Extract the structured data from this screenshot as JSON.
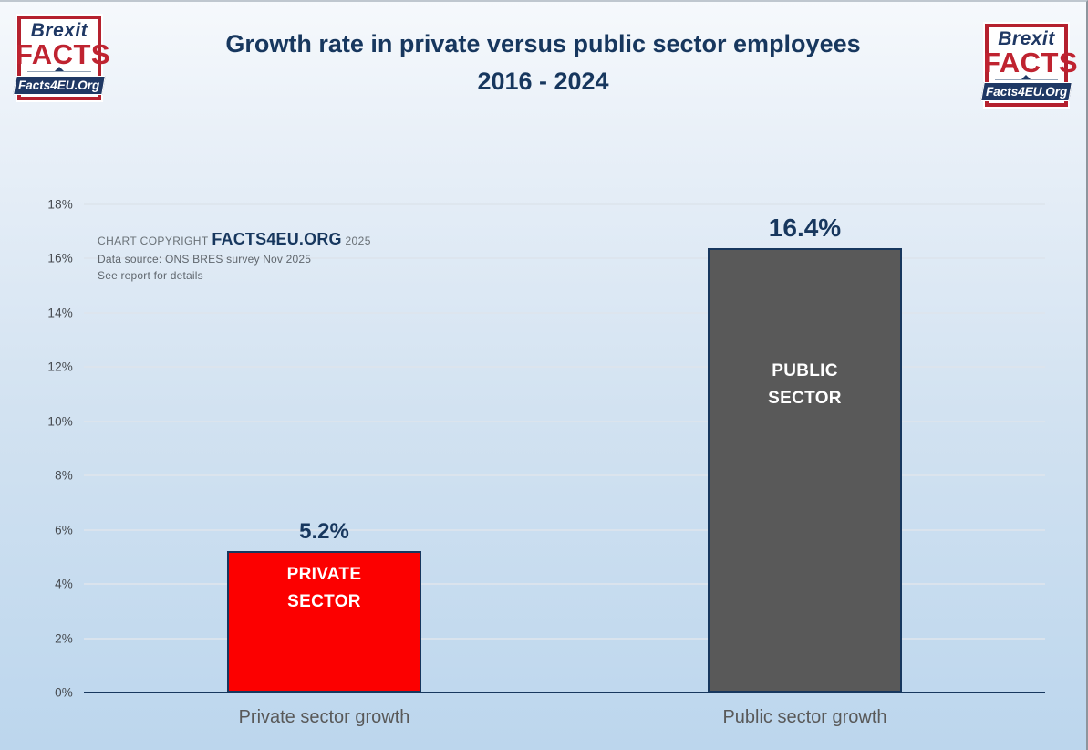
{
  "header": {
    "title_line1": "Growth rate in private versus public sector employees",
    "title_line2": "2016 - 2024"
  },
  "logo": {
    "top_text": "Brexit",
    "main_text": "FACTS",
    "banner_text": "Facts4EU.Org"
  },
  "copyright": {
    "prefix": "CHART COPYRIGHT",
    "org": "FACTS4EU.ORG",
    "year": "2025",
    "source_line": "Data source: ONS BRES survey Nov 2025",
    "note_line": "See report for details"
  },
  "chart_data": {
    "type": "bar",
    "title": "Growth rate in private versus public sector employees 2016 - 2024",
    "categories": [
      "Private sector growth",
      "Public sector growth"
    ],
    "values": [
      5.2,
      16.4
    ],
    "value_labels": [
      "5.2%",
      "16.4%"
    ],
    "bar_labels": [
      [
        "PRIVATE",
        "SECTOR"
      ],
      [
        "PUBLIC",
        "SECTOR"
      ]
    ],
    "bar_colors": [
      "#fc0000",
      "#595959"
    ],
    "bar_border_color": "#17375e",
    "xlabel": "",
    "ylabel": "",
    "ylim": [
      0,
      18
    ],
    "ytick_step": 2,
    "yticks": [
      "18%",
      "16%",
      "14%",
      "12%",
      "10%",
      "8%",
      "6%",
      "4%",
      "2%",
      "0%"
    ],
    "grid": true,
    "legend": "none",
    "background": "gradient-light-blue",
    "accent_color": "#17375e"
  }
}
